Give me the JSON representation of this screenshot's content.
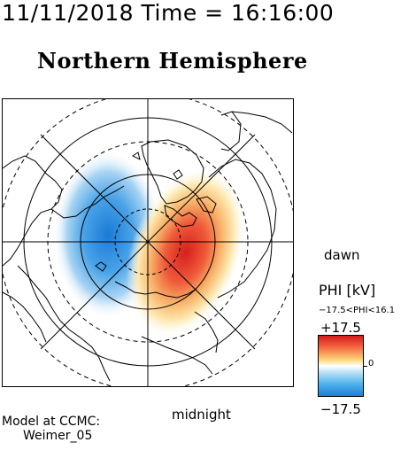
{
  "timestamp": "11/11/2018 Time = 16:16:00",
  "title": "Northern Hemisphere",
  "labels": {
    "dawn": "dawn",
    "midnight": "midnight"
  },
  "colorbar": {
    "label": "PHI [kV]",
    "range_text": "−17.5<PHI<16.1",
    "max_label": "+17.5",
    "min_label": "−17.5",
    "zero_label": "0",
    "colors": {
      "positive": "#d7191c",
      "neutral": "#ffffff",
      "negative": "#1e7fd8"
    }
  },
  "credit": {
    "line1": "Model at CCMC:",
    "line2": "Weimer_05"
  }
}
